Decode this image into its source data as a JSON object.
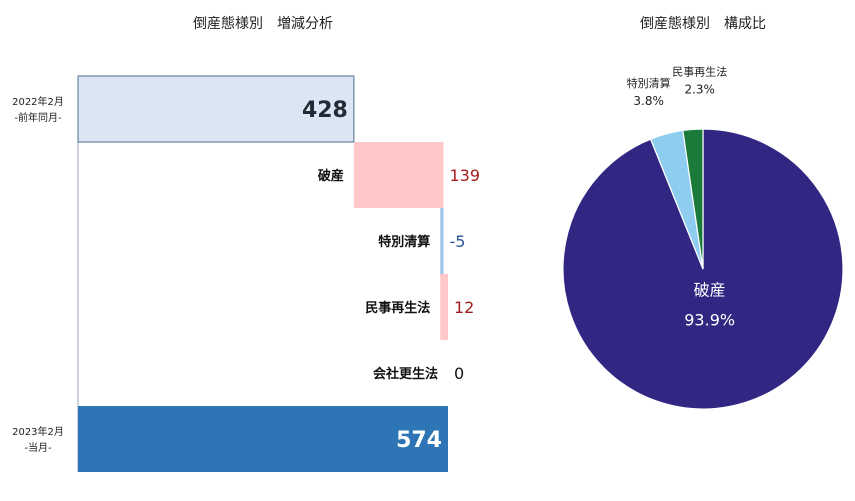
{
  "chart_data": [
    {
      "type": "waterfall",
      "title": "倒産態様別　増減分析",
      "start": {
        "label_line1": "2022年2月",
        "label_line2": "-前年同月-",
        "value": 428
      },
      "steps": [
        {
          "label": "破産",
          "value": 139,
          "display": "139"
        },
        {
          "label": "特別清算",
          "value": -5,
          "display": "-5"
        },
        {
          "label": "民事再生法",
          "value": 12,
          "display": "12"
        },
        {
          "label": "会社更生法",
          "value": 0,
          "display": "0"
        }
      ],
      "end": {
        "label_line1": "2023年2月",
        "label_line2": "-当月-",
        "value": 574
      },
      "colors": {
        "start_fill": "#dce6f2",
        "start_stroke": "#4f6e96",
        "increase": "#ffc7c7",
        "decrease": "#9fc5e8",
        "end_fill": "#2e75b6",
        "increase_text": "#a61c1c",
        "decrease_text": "#2f5597",
        "dark_text": "#222a35"
      },
      "xlim": [
        0,
        574
      ]
    },
    {
      "type": "pie",
      "title": "倒産態様別　構成比",
      "slices": [
        {
          "label": "破産",
          "percent": 93.9,
          "display": "93.9%",
          "color": "#312783"
        },
        {
          "label": "特別清算",
          "percent": 3.8,
          "display": "3.8%",
          "color": "#8fcdf0"
        },
        {
          "label": "民事再生法",
          "percent": 2.3,
          "display": "2.3%",
          "color": "#1a7a3a"
        }
      ]
    }
  ]
}
